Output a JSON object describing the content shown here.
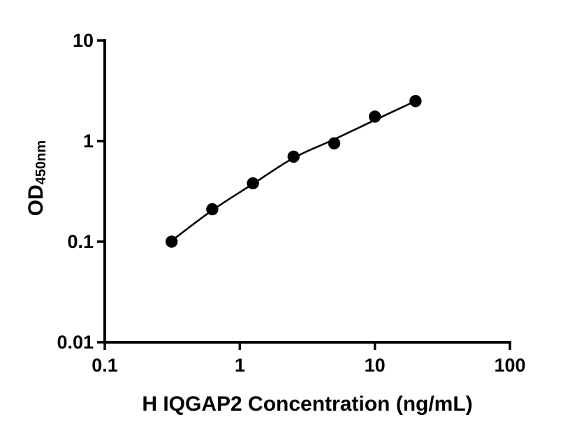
{
  "page": {
    "background": "#ffffff"
  },
  "chart_data": {
    "type": "scatter",
    "xlabel": "H IQGAP2 Concentration (ng/mL)",
    "ylabel_main": "OD",
    "ylabel_sub": "450nm",
    "x_scale": "log",
    "y_scale": "log",
    "xlim": [
      0.1,
      100
    ],
    "ylim": [
      0.01,
      10
    ],
    "x_ticks": [
      {
        "value": 0.1,
        "label": "0.1"
      },
      {
        "value": 1,
        "label": "1"
      },
      {
        "value": 10,
        "label": "10"
      },
      {
        "value": 100,
        "label": "100"
      }
    ],
    "y_ticks": [
      {
        "value": 0.01,
        "label": "0.01"
      },
      {
        "value": 0.1,
        "label": "0.1"
      },
      {
        "value": 1,
        "label": "1"
      },
      {
        "value": 10,
        "label": "10"
      }
    ],
    "series": [
      {
        "x": [
          0.3125,
          0.625,
          1.25,
          2.5,
          5,
          10,
          20
        ],
        "y": [
          0.1,
          0.21,
          0.38,
          0.7,
          0.95,
          1.75,
          2.5
        ],
        "marker": "filled-circle",
        "color": "#000000"
      }
    ],
    "fit_curve": {
      "x": [
        0.3125,
        0.625,
        1.25,
        2.5,
        5,
        10,
        20
      ],
      "y": [
        0.102,
        0.205,
        0.375,
        0.68,
        1.04,
        1.62,
        2.5
      ],
      "color": "#000000"
    },
    "axis_color": "#000000",
    "grid": false,
    "legend": false
  }
}
